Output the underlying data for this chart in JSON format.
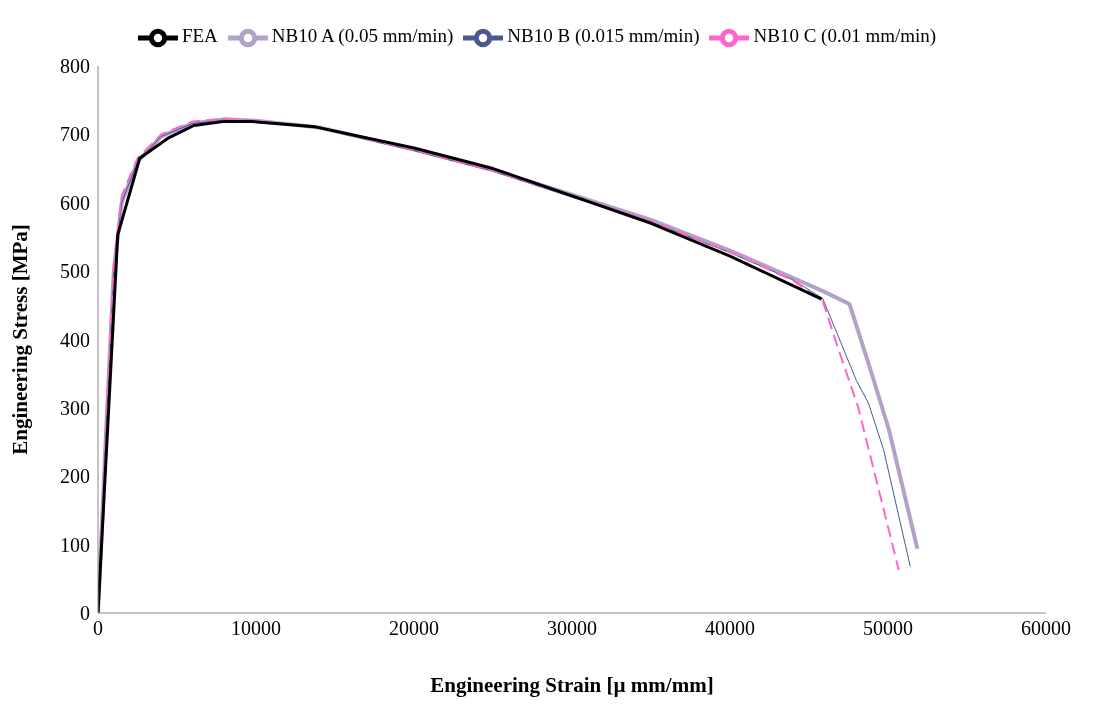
{
  "chart_data": {
    "type": "line",
    "xlabel": "Engineering Strain [µ mm/mm]",
    "ylabel": "Engineering Stress [MPa]",
    "xlim": [
      0,
      60000
    ],
    "xticks": [
      0,
      10000,
      20000,
      30000,
      40000,
      50000,
      60000
    ],
    "ylim": [
      0,
      800
    ],
    "yticks": [
      0,
      100,
      200,
      300,
      400,
      500,
      600,
      700,
      800
    ],
    "grid": false,
    "legend": "top",
    "series": [
      {
        "name": "NB10 A (0.05 mm/min)",
        "color": "#b3a2c7",
        "line_style": "solid",
        "x": [
          0,
          500,
          1000,
          1500,
          2500,
          4000,
          6000,
          8000,
          10000,
          14000,
          20000,
          25000,
          30000,
          35000,
          40000,
          44000,
          45950,
          47560,
          48780,
          50060,
          51860
        ],
        "values": [
          0,
          260,
          500,
          600,
          660,
          697,
          716,
          722,
          720,
          710,
          678,
          648,
          612,
          575,
          530,
          490,
          470,
          452,
          364,
          268,
          94
        ]
      },
      {
        "name": "NB10 B (0.015 mm/min)",
        "color": "#4a5a8c",
        "line_style": "solid",
        "x": [
          0,
          500,
          1000,
          1500,
          2500,
          4000,
          6000,
          8000,
          10000,
          14000,
          20000,
          25000,
          30000,
          35000,
          40000,
          44000,
          45870,
          48000,
          48760,
          49720,
          51410
        ],
        "values": [
          0,
          260,
          500,
          600,
          660,
          697,
          716,
          721,
          719,
          709,
          676,
          646,
          608,
          572,
          527,
          487,
          460,
          340,
          307,
          239,
          68
        ]
      },
      {
        "name": "NB10 C (0.01 mm/min)",
        "color": "#ff66cc",
        "line_style": "dashed",
        "x": [
          0,
          500,
          1000,
          1500,
          2500,
          4000,
          6000,
          8000,
          10000,
          14000,
          20000,
          25000,
          30000,
          35000,
          40000,
          44000,
          45870,
          46830,
          48110,
          50680
        ],
        "values": [
          0,
          270,
          510,
          610,
          665,
          700,
          719,
          723,
          720,
          710,
          677,
          647,
          610,
          573,
          528,
          486,
          456,
          388,
          301,
          63
        ]
      },
      {
        "name": "FEA",
        "color": "#000000",
        "line_style": "solid",
        "x": [
          0,
          1250,
          2640,
          4470,
          6070,
          8030,
          9640,
          13750,
          20000,
          25000,
          30000,
          35000,
          40000,
          45800
        ],
        "values": [
          0,
          553,
          665,
          695,
          713,
          719,
          719,
          711,
          680,
          650,
          610,
          570,
          522,
          459
        ]
      }
    ]
  }
}
